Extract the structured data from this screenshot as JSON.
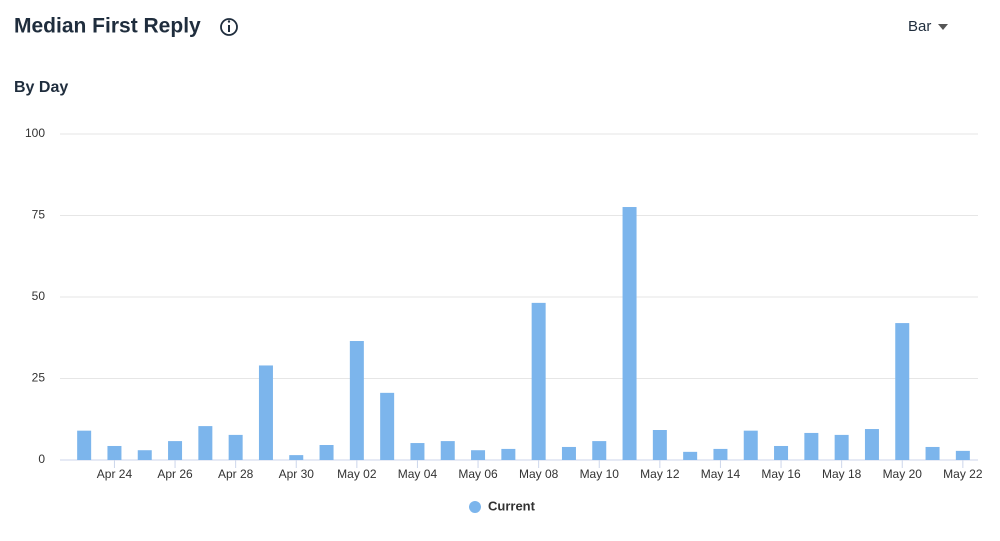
{
  "header": {
    "title": "Median First Reply",
    "selector": "Bar"
  },
  "chart_data": {
    "type": "bar",
    "subtitle": "By Day",
    "categories": [
      null,
      "Apr 24",
      null,
      "Apr 26",
      null,
      "Apr 28",
      null,
      "Apr 30",
      null,
      "May 02",
      null,
      "May 04",
      null,
      "May 06",
      null,
      "May 08",
      null,
      "May 10",
      null,
      "May 12",
      null,
      "May 14",
      null,
      "May 16",
      null,
      "May 18",
      null,
      "May 20",
      null,
      "May 22"
    ],
    "series": [
      {
        "name": "Current",
        "color": "#7cb5ec",
        "values": [
          9,
          4.3,
          3,
          5.8,
          10.4,
          7.7,
          29,
          1.5,
          4.6,
          36.5,
          20.6,
          5.2,
          5.8,
          3,
          3.4,
          48.2,
          4,
          5.8,
          77.6,
          9.2,
          2.5,
          3.4,
          9,
          4.3,
          8.3,
          7.7,
          9.5,
          42,
          4,
          2.8
        ]
      }
    ],
    "ylim": [
      0,
      100
    ],
    "yticks": [
      0,
      25,
      50,
      75,
      100
    ],
    "grid": true
  }
}
